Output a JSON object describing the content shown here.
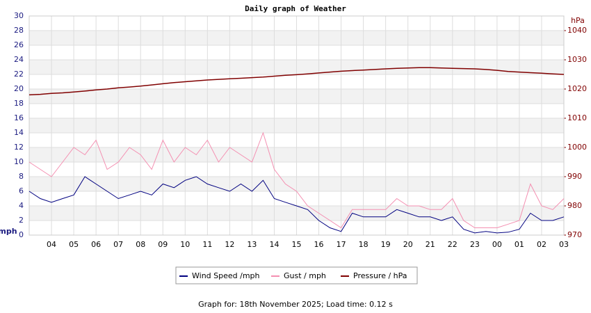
{
  "chart_data": {
    "type": "line",
    "title": "Daily graph of Weather",
    "y_label": "mph",
    "y2_label": "hPa",
    "footer": "Graph for: 18th November 2025; Load time: 0.12 s",
    "categories": [
      null,
      null,
      "04",
      null,
      "05",
      null,
      "06",
      null,
      "07",
      null,
      "08",
      null,
      "09",
      null,
      "10",
      null,
      "11",
      null,
      "12",
      null,
      "13",
      null,
      "14",
      null,
      "15",
      null,
      "16",
      null,
      "17",
      null,
      "18",
      null,
      "19",
      null,
      "20",
      null,
      "21",
      null,
      "22",
      null,
      "23",
      null,
      "00",
      null,
      "01",
      null,
      "02",
      null,
      "03"
    ],
    "ylim": [
      0,
      30
    ],
    "yticks": [
      0,
      2,
      4,
      6,
      8,
      10,
      12,
      14,
      16,
      18,
      20,
      22,
      24,
      26,
      28,
      30
    ],
    "y2lim": [
      970,
      1045
    ],
    "y2ticks": [
      970,
      980,
      990,
      1000,
      1010,
      1020,
      1030,
      1040
    ],
    "grid": true,
    "series": [
      {
        "name": "Wind Speed /mph",
        "color": "#000080",
        "values": [
          6,
          5,
          4.5,
          5,
          5.5,
          8,
          7,
          6,
          5,
          5.5,
          6,
          5.5,
          7,
          6.5,
          7.5,
          8,
          7,
          6.5,
          6,
          7,
          6,
          7.5,
          5,
          4.5,
          4,
          3.5,
          2,
          1,
          0.5,
          3,
          2.5,
          2.5,
          2.5,
          3.5,
          3,
          2.5,
          2.5,
          2,
          2.5,
          0.8,
          0.3,
          0.5,
          0.3,
          0.4,
          0.8,
          3,
          2,
          2,
          2.5
        ]
      },
      {
        "name": "Gust / mph",
        "color": "#f48fb1",
        "values": [
          10,
          9,
          8,
          10,
          12,
          11,
          13,
          9,
          10,
          12,
          11,
          9,
          13,
          10,
          12,
          11,
          13,
          10,
          12,
          11,
          10,
          14,
          9,
          7,
          6,
          4,
          3,
          2,
          1,
          3.5,
          3.5,
          3.5,
          3.5,
          5,
          4,
          4,
          3.5,
          3.5,
          5,
          2,
          1,
          1,
          1,
          1.5,
          2,
          7,
          4,
          3.5,
          5
        ]
      },
      {
        "name": "Pressure / hPa",
        "color": "#800000",
        "axis": "y2",
        "values": [
          1018,
          1018.2,
          1018.5,
          1018.7,
          1019,
          1019.3,
          1019.7,
          1020,
          1020.4,
          1020.7,
          1021,
          1021.4,
          1021.8,
          1022.2,
          1022.5,
          1022.8,
          1023.1,
          1023.3,
          1023.5,
          1023.7,
          1023.9,
          1024.1,
          1024.4,
          1024.7,
          1024.9,
          1025.2,
          1025.5,
          1025.8,
          1026.1,
          1026.3,
          1026.5,
          1026.7,
          1026.9,
          1027.1,
          1027.2,
          1027.3,
          1027.3,
          1027.2,
          1027.1,
          1027,
          1026.9,
          1026.7,
          1026.4,
          1026,
          1025.8,
          1025.6,
          1025.4,
          1025.2,
          1025
        ]
      }
    ]
  }
}
